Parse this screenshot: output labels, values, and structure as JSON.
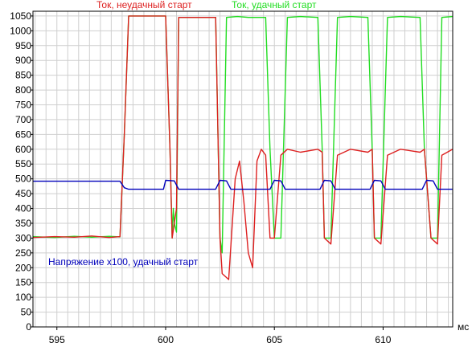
{
  "chart_data": {
    "type": "line",
    "xlabel": "мс",
    "ylabel": "",
    "xlim": [
      593.9,
      613.2
    ],
    "ylim": [
      0,
      1066
    ],
    "x_ticks": [
      595,
      600,
      605,
      610
    ],
    "y_ticks": [
      0,
      50,
      100,
      150,
      200,
      250,
      300,
      350,
      400,
      450,
      500,
      550,
      600,
      650,
      700,
      750,
      800,
      850,
      900,
      950,
      1000,
      1050
    ],
    "grid": true,
    "series": [
      {
        "name": "Ток, удачный старт",
        "color": "#22dd22",
        "x": [
          593.9,
          594.9,
          595.8,
          596.6,
          597.4,
          597.9,
          598.1,
          598.3,
          600.0,
          600.2,
          600.3,
          600.35,
          600.4,
          600.5,
          600.6,
          602.3,
          602.5,
          602.6,
          602.8,
          603.3,
          603.8,
          604.6,
          604.8,
          605.0,
          605.3,
          605.6,
          606.2,
          607.0,
          607.2,
          607.3,
          607.6,
          607.9,
          608.5,
          609.3,
          609.5,
          609.6,
          609.9,
          610.2,
          610.8,
          611.7,
          611.9,
          612.2,
          612.5,
          612.7,
          613.2
        ],
        "values": [
          305,
          302,
          306,
          303,
          306,
          304,
          650,
          1050,
          1050,
          600,
          300,
          400,
          350,
          320,
          1045,
          1045,
          300,
          250,
          1045,
          1048,
          1045,
          1045,
          600,
          300,
          300,
          1045,
          1048,
          1045,
          600,
          300,
          300,
          1045,
          1048,
          1045,
          600,
          300,
          300,
          1045,
          1048,
          1045,
          600,
          300,
          300,
          1045,
          1048
        ]
      },
      {
        "name": "Ток, неудачный старт",
        "color": "#dd2020",
        "x": [
          593.9,
          594.9,
          595.8,
          596.6,
          597.4,
          597.9,
          598.1,
          598.3,
          600.0,
          600.2,
          600.3,
          600.5,
          600.6,
          602.3,
          602.5,
          602.6,
          602.9,
          603.2,
          603.4,
          603.6,
          603.8,
          604.0,
          604.2,
          604.4,
          604.6,
          604.8,
          605.0,
          605.3,
          605.6,
          606.2,
          607.0,
          607.2,
          607.3,
          607.6,
          607.9,
          608.5,
          609.3,
          609.5,
          609.6,
          609.9,
          610.2,
          610.8,
          611.7,
          611.9,
          612.2,
          612.5,
          612.7,
          613.2
        ],
        "values": [
          302,
          305,
          303,
          307,
          302,
          305,
          650,
          1050,
          1050,
          600,
          300,
          400,
          1045,
          1045,
          300,
          180,
          160,
          500,
          560,
          420,
          250,
          200,
          560,
          600,
          580,
          300,
          300,
          580,
          600,
          590,
          600,
          590,
          300,
          280,
          580,
          600,
          590,
          600,
          300,
          280,
          580,
          600,
          590,
          600,
          300,
          280,
          580,
          600
        ]
      },
      {
        "name": "Напряжение x100, удачный старт",
        "color": "#0000bb",
        "x": [
          593.9,
          597.9,
          598.1,
          598.3,
          599.9,
          600.0,
          600.4,
          600.6,
          602.3,
          602.5,
          602.8,
          603.0,
          604.8,
          605.0,
          605.3,
          605.5,
          607.1,
          607.3,
          607.6,
          607.8,
          609.4,
          609.6,
          609.9,
          610.1,
          611.8,
          612.0,
          612.3,
          612.5,
          613.2
        ],
        "values": [
          492,
          492,
          470,
          465,
          465,
          495,
          493,
          465,
          465,
          495,
          493,
          465,
          465,
          495,
          493,
          465,
          465,
          495,
          493,
          465,
          465,
          495,
          493,
          465,
          465,
          495,
          493,
          465,
          465
        ]
      }
    ],
    "legend": [
      {
        "label": "Ток, неудачный старт",
        "color": "#dd2020"
      },
      {
        "label": "Ток, удачный старт",
        "color": "#22dd22"
      },
      {
        "label": "Напряжение x100, удачный старт",
        "color": "#0000bb"
      }
    ]
  }
}
